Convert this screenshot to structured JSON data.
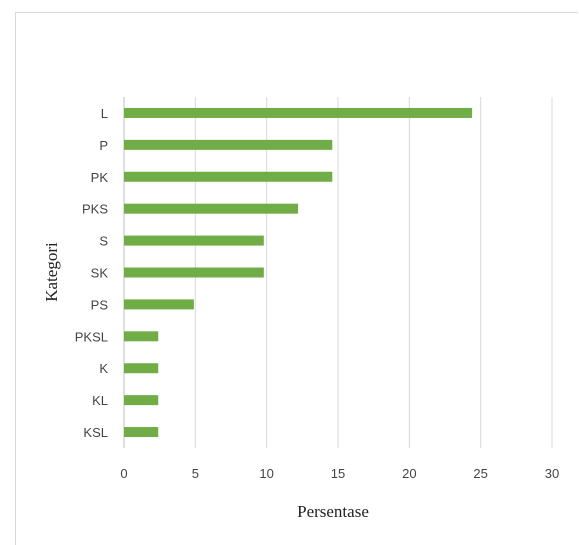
{
  "chart_data": {
    "type": "bar",
    "orientation": "horizontal",
    "categories": [
      "L",
      "P",
      "PK",
      "PKS",
      "S",
      "SK",
      "PS",
      "PKSL",
      "K",
      "KL",
      "KSL"
    ],
    "values": [
      24.4,
      14.6,
      14.6,
      12.2,
      9.8,
      9.8,
      4.9,
      2.4,
      2.4,
      2.4,
      2.4
    ],
    "xlabel": "Persentase",
    "ylabel": "Kategori",
    "xlim": [
      0,
      30
    ],
    "xticks": [
      "0",
      "5",
      "10",
      "15",
      "20",
      "25",
      "30"
    ],
    "grid": "vertical",
    "legend": "none",
    "bar_color": "#70ad47",
    "grid_color": "#d9d9d9"
  }
}
